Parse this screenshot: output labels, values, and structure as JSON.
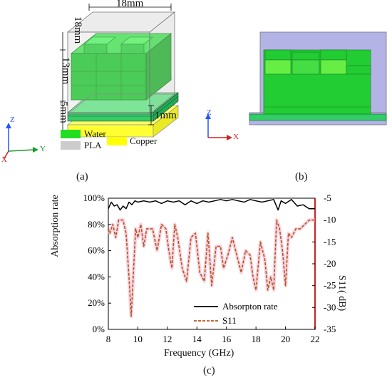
{
  "figure": {
    "panel_a": {
      "caption": "(a)",
      "dims": {
        "width": "18mm",
        "depth": "18mm",
        "height_top": "13mm",
        "height_base": "5mm",
        "thickness": "1mm"
      },
      "legend": [
        {
          "label": "Water",
          "color": "#22dd22"
        },
        {
          "label": "PLA",
          "color": "#cccccc"
        },
        {
          "label": "Copper",
          "color": "#ffff00"
        }
      ],
      "axes": {
        "z": "Z",
        "y": "Y",
        "x": "X"
      }
    },
    "panel_b": {
      "caption": "(b)",
      "axes": {
        "z": "Z",
        "x": "X"
      }
    },
    "panel_c": {
      "caption": "(c)"
    }
  },
  "chart_data": {
    "type": "line",
    "xlabel": "Frequency (GHz)",
    "ylabel_left": "Absorption rate",
    "ylabel_right": "S11( dB)",
    "xlim": [
      8,
      22
    ],
    "xticks": [
      "8",
      "10",
      "12",
      "14",
      "16",
      "18",
      "20",
      "22"
    ],
    "ylim_left": [
      0,
      100
    ],
    "yticks_left": [
      "0%",
      "20%",
      "40%",
      "60%",
      "80%",
      "100%"
    ],
    "ylim_right": [
      -35,
      -5
    ],
    "yticks_right": [
      "-5",
      "-10",
      "-15",
      "-20",
      "-25",
      "-30",
      "-35"
    ],
    "legend_position": "bottom-right",
    "series": [
      {
        "name": "Absorpton rate",
        "axis": "left",
        "color": "#000000",
        "style": "solid",
        "x": [
          8.0,
          8.2,
          8.4,
          8.6,
          8.8,
          9.0,
          9.2,
          9.4,
          9.6,
          9.8,
          10.0,
          10.4,
          10.8,
          11.2,
          11.6,
          12.0,
          12.4,
          12.8,
          13.2,
          13.6,
          14.0,
          14.4,
          14.8,
          15.2,
          15.6,
          16.0,
          16.4,
          16.8,
          17.2,
          17.6,
          18.0,
          18.4,
          18.8,
          19.2,
          19.5,
          19.7,
          20.0,
          20.4,
          20.8,
          21.2,
          21.6,
          22.0
        ],
        "y": [
          92,
          97,
          94,
          95,
          91,
          94,
          92,
          97,
          95,
          98,
          97,
          98,
          97,
          98,
          96,
          98,
          97,
          98,
          95,
          98,
          96,
          98,
          97,
          98,
          99,
          98,
          99,
          98,
          97,
          99,
          98,
          97,
          98,
          99,
          91,
          98,
          96,
          99,
          94,
          95,
          92,
          92
        ]
      },
      {
        "name": "S11",
        "axis": "right",
        "color": "#b5561e",
        "style": "dashed",
        "x": [
          8.0,
          8.1,
          8.3,
          8.5,
          8.7,
          9.0,
          9.2,
          9.4,
          9.55,
          9.7,
          9.85,
          10.0,
          10.2,
          10.4,
          10.6,
          10.8,
          11.0,
          11.3,
          11.6,
          11.9,
          12.1,
          12.3,
          12.5,
          12.7,
          13.0,
          13.3,
          13.6,
          13.9,
          14.2,
          14.5,
          14.75,
          15.0,
          15.3,
          15.6,
          15.8,
          16.1,
          16.4,
          16.7,
          17.0,
          17.3,
          17.6,
          17.8,
          18.0,
          18.3,
          18.6,
          18.8,
          19.0,
          19.2,
          19.4,
          19.6,
          19.8,
          20.0,
          20.2,
          20.4,
          20.7,
          21.0,
          21.3,
          21.6,
          22.0
        ],
        "y": [
          -12,
          -13,
          -11,
          -14,
          -10,
          -10,
          -13,
          -23,
          -32,
          -22,
          -12,
          -14,
          -11,
          -16,
          -12,
          -12,
          -12,
          -17,
          -11,
          -12,
          -17,
          -21,
          -11,
          -14,
          -21,
          -24,
          -14,
          -13,
          -22,
          -24,
          -13,
          -25,
          -16,
          -16,
          -21,
          -18,
          -14,
          -18,
          -22,
          -17,
          -18,
          -23,
          -26,
          -15,
          -19,
          -26,
          -23,
          -26,
          -10,
          -12,
          -17,
          -25,
          -13,
          -14,
          -12,
          -12,
          -11,
          -10,
          -10
        ]
      }
    ]
  }
}
